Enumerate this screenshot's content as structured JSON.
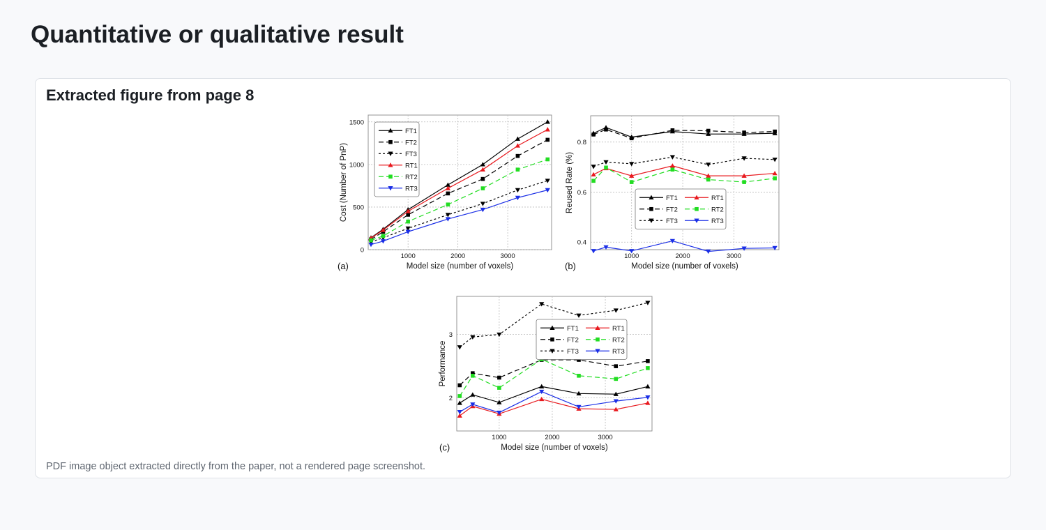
{
  "page": {
    "title": "Quantitative or qualitative result"
  },
  "card": {
    "title": "Extracted figure from page 8",
    "caption": "PDF image object extracted directly from the paper, not a rendered page screenshot."
  },
  "series_styles": [
    {
      "name": "FT1",
      "color": "#000000",
      "dash": "",
      "marker": "tri-up"
    },
    {
      "name": "FT2",
      "color": "#000000",
      "dash": "7,4",
      "marker": "square"
    },
    {
      "name": "FT3",
      "color": "#000000",
      "dash": "3,3",
      "marker": "tri-down"
    },
    {
      "name": "RT1",
      "color": "#e8191e",
      "dash": "",
      "marker": "tri-up"
    },
    {
      "name": "RT2",
      "color": "#22dd22",
      "dash": "7,4",
      "marker": "square"
    },
    {
      "name": "RT3",
      "color": "#1a2ee6",
      "dash": "",
      "marker": "tri-down"
    }
  ],
  "chart_data": [
    {
      "panel": "(a)",
      "type": "line",
      "xlabel": "Model size (number of voxels)",
      "ylabel": "Cost (Number of PnP)",
      "xlim": [
        200,
        3880
      ],
      "ylim": [
        0,
        1580
      ],
      "xticks": [
        1000,
        2000,
        3000
      ],
      "yticks": [
        0,
        500,
        1000,
        1500
      ],
      "grid": true,
      "legend": {
        "placement": "top-left",
        "columns": 1
      },
      "x": [
        256,
        500,
        1000,
        1800,
        2500,
        3200,
        3800
      ],
      "series": [
        {
          "name": "FT1",
          "values": [
            140,
            240,
            470,
            760,
            1000,
            1300,
            1500
          ]
        },
        {
          "name": "FT2",
          "values": [
            120,
            210,
            410,
            660,
            830,
            1100,
            1290
          ]
        },
        {
          "name": "FT3",
          "values": [
            90,
            140,
            250,
            410,
            540,
            700,
            810
          ]
        },
        {
          "name": "RT1",
          "values": [
            135,
            230,
            450,
            720,
            940,
            1220,
            1410
          ]
        },
        {
          "name": "RT2",
          "values": [
            110,
            160,
            330,
            530,
            720,
            940,
            1060
          ]
        },
        {
          "name": "RT3",
          "values": [
            60,
            100,
            210,
            360,
            470,
            610,
            700
          ]
        }
      ]
    },
    {
      "panel": "(b)",
      "type": "line",
      "xlabel": "Model size (number of voxels)",
      "ylabel": "Reused Rate (%)",
      "xlim": [
        200,
        3880
      ],
      "ylim": [
        0.37,
        0.905
      ],
      "xticks": [
        1000,
        2000,
        3000
      ],
      "yticks": [
        0.4,
        0.6,
        0.8
      ],
      "grid": true,
      "legend": {
        "placement": "center-right",
        "columns": 2
      },
      "x": [
        256,
        500,
        1000,
        1800,
        2500,
        3200,
        3800
      ],
      "series": [
        {
          "name": "FT1",
          "values": [
            0.835,
            0.858,
            0.82,
            0.842,
            0.832,
            0.832,
            0.835
          ]
        },
        {
          "name": "FT2",
          "values": [
            0.83,
            0.85,
            0.815,
            0.847,
            0.845,
            0.838,
            0.842
          ]
        },
        {
          "name": "FT3",
          "values": [
            0.702,
            0.72,
            0.713,
            0.74,
            0.71,
            0.735,
            0.73
          ]
        },
        {
          "name": "RT1",
          "values": [
            0.67,
            0.695,
            0.665,
            0.705,
            0.665,
            0.665,
            0.675
          ]
        },
        {
          "name": "RT2",
          "values": [
            0.645,
            0.698,
            0.64,
            0.69,
            0.65,
            0.64,
            0.655
          ]
        },
        {
          "name": "RT3",
          "values": [
            0.365,
            0.38,
            0.365,
            0.405,
            0.363,
            0.375,
            0.377
          ]
        }
      ]
    },
    {
      "panel": "(c)",
      "type": "line",
      "xlabel": "Model size (number of voxels)",
      "ylabel": "Performance",
      "xlim": [
        200,
        3880
      ],
      "ylim": [
        1.48,
        3.6
      ],
      "xticks": [
        1000,
        2000,
        3000
      ],
      "yticks": [
        2,
        3
      ],
      "grid": true,
      "legend": {
        "placement": "top-right",
        "columns": 2
      },
      "x": [
        256,
        500,
        1000,
        1800,
        2500,
        3200,
        3800
      ],
      "series": [
        {
          "name": "FT1",
          "values": [
            1.92,
            2.05,
            1.93,
            2.18,
            2.07,
            2.06,
            2.18
          ]
        },
        {
          "name": "FT2",
          "values": [
            2.2,
            2.39,
            2.32,
            2.6,
            2.6,
            2.5,
            2.58
          ]
        },
        {
          "name": "FT3",
          "values": [
            2.8,
            2.96,
            3.0,
            3.48,
            3.3,
            3.38,
            3.5
          ]
        },
        {
          "name": "RT1",
          "values": [
            1.72,
            1.87,
            1.75,
            1.98,
            1.83,
            1.82,
            1.92
          ]
        },
        {
          "name": "RT2",
          "values": [
            2.03,
            2.35,
            2.16,
            2.61,
            2.35,
            2.3,
            2.47
          ]
        },
        {
          "name": "RT3",
          "values": [
            1.78,
            1.9,
            1.77,
            2.1,
            1.86,
            1.95,
            2.01
          ]
        }
      ]
    }
  ]
}
